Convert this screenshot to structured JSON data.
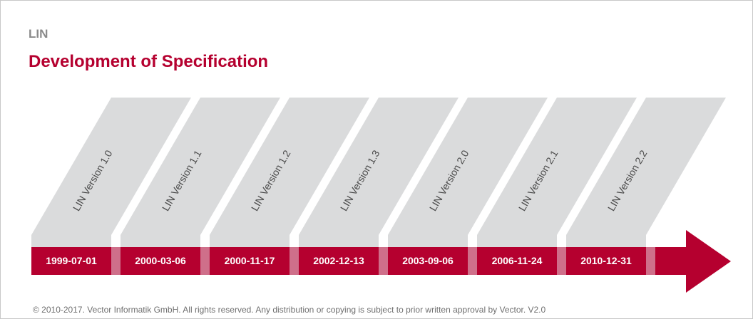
{
  "header": {
    "kicker": "LIN",
    "title": "Development of Specification"
  },
  "colors": {
    "accent": "#b5002f",
    "panel": "#dadbdc",
    "separator": "#cf6f8a"
  },
  "timeline": {
    "milestones": [
      {
        "version": "LIN Version 1.0",
        "date": "1999-07-01"
      },
      {
        "version": "LIN Version 1.1",
        "date": "2000-03-06"
      },
      {
        "version": "LIN Version 1.2",
        "date": "2000-11-17"
      },
      {
        "version": "LIN Version 1.3",
        "date": "2002-12-13"
      },
      {
        "version": "LIN Version 2.0",
        "date": "2003-09-06"
      },
      {
        "version": "LIN Version 2.1",
        "date": "2006-11-24"
      },
      {
        "version": "LIN Version 2.2",
        "date": "2010-12-31"
      }
    ]
  },
  "footer": {
    "copyright": "© 2010-2017. Vector Informatik GmbH. All rights reserved. Any distribution or copying is subject to prior written approval by Vector. V2.0"
  }
}
